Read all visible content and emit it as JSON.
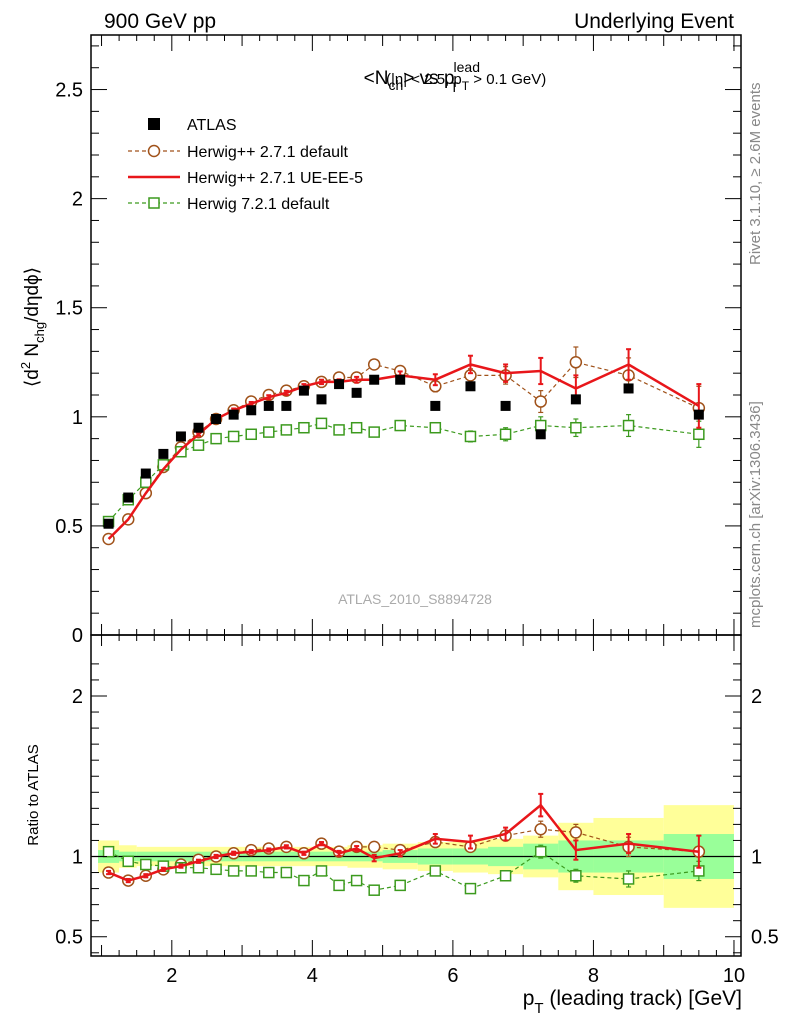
{
  "header": {
    "left": "900 GeV pp",
    "right": "Underlying Event"
  },
  "side": {
    "rivet": "Rivet 3.1.10,  ≥ 2.6M events",
    "mcplots": "mcplots.cern.ch [arXiv:1306.3436]"
  },
  "watermark": "ATLAS_2010_S8894728",
  "colors": {
    "data": "#000000",
    "herwig_default": "#a0521a",
    "herwig_ueee5": "#e8161a",
    "herwig7": "#3c9a1e",
    "band_inner": "#99ff99",
    "band_outer": "#ffff99"
  },
  "chart_data": [
    {
      "type": "scatter",
      "panel": "main",
      "title_parts": {
        "lhs": "<N",
        "lhs_sub": "ch",
        "mid": "> vs p",
        "mid_sup": "lead",
        "mid_sub": "T",
        "cut": "(|η| < 2.5, p",
        "cut_sub": "T",
        "cut_end": " > 0.1 GeV)"
      },
      "ylabel_parts": {
        "a": "⟨d",
        "a_sup": "2",
        "b": " N",
        "b_sub": "chg",
        "c": "/dηdϕ⟩"
      },
      "xlim": [
        0.85,
        10.1
      ],
      "ylim": [
        0,
        2.75
      ],
      "yticks": [
        {
          "v": 0,
          "l": "0"
        },
        {
          "v": 0.5,
          "l": "0.5"
        },
        {
          "v": 1,
          "l": "1"
        },
        {
          "v": 1.5,
          "l": "1.5"
        },
        {
          "v": 2,
          "l": "2"
        },
        {
          "v": 2.5,
          "l": "2.5"
        }
      ],
      "x": [
        1.1,
        1.38,
        1.63,
        1.88,
        2.13,
        2.38,
        2.63,
        2.88,
        3.13,
        3.38,
        3.63,
        3.88,
        4.13,
        4.38,
        4.63,
        4.88,
        5.25,
        5.75,
        6.25,
        6.75,
        7.25,
        7.75,
        8.5,
        9.5
      ],
      "legend": [
        "ATLAS",
        "Herwig++ 2.7.1 default",
        "Herwig++ 2.7.1 UE-EE-5",
        "Herwig 7.2.1 default"
      ],
      "series": [
        {
          "name": "ATLAS",
          "style": "data",
          "values": [
            0.51,
            0.63,
            0.74,
            0.83,
            0.91,
            0.95,
            0.99,
            1.01,
            1.03,
            1.05,
            1.05,
            1.12,
            1.08,
            1.15,
            1.11,
            1.17,
            1.17,
            1.05,
            1.14,
            1.05,
            0.92,
            1.08,
            1.13,
            1.01
          ]
        },
        {
          "name": "Herwig++ 2.7.1 default",
          "style": "herwig_default",
          "values": [
            0.44,
            0.53,
            0.65,
            0.77,
            0.86,
            0.93,
            0.99,
            1.03,
            1.07,
            1.1,
            1.12,
            1.14,
            1.16,
            1.18,
            1.18,
            1.24,
            1.21,
            1.14,
            1.19,
            1.19,
            1.07,
            1.25,
            1.19,
            1.04
          ],
          "err": [
            0.005,
            0.005,
            0.005,
            0.006,
            0.006,
            0.007,
            0.007,
            0.008,
            0.008,
            0.009,
            0.009,
            0.01,
            0.01,
            0.012,
            0.013,
            0.015,
            0.018,
            0.025,
            0.03,
            0.04,
            0.05,
            0.07,
            0.08,
            0.1
          ]
        },
        {
          "name": "Herwig++ 2.7.1 UE-EE-5",
          "style": "herwig_ueee5",
          "values": [
            0.44,
            0.53,
            0.65,
            0.76,
            0.85,
            0.92,
            0.99,
            1.03,
            1.06,
            1.09,
            1.11,
            1.14,
            1.16,
            1.16,
            1.17,
            1.17,
            1.19,
            1.17,
            1.24,
            1.2,
            1.21,
            1.13,
            1.24,
            1.05
          ],
          "err": [
            0.005,
            0.005,
            0.005,
            0.006,
            0.006,
            0.007,
            0.007,
            0.008,
            0.008,
            0.009,
            0.009,
            0.01,
            0.01,
            0.012,
            0.013,
            0.015,
            0.018,
            0.025,
            0.04,
            0.04,
            0.06,
            0.06,
            0.07,
            0.1
          ]
        },
        {
          "name": "Herwig 7.2.1 default",
          "style": "herwig7",
          "values": [
            0.52,
            0.62,
            0.7,
            0.78,
            0.84,
            0.87,
            0.9,
            0.91,
            0.92,
            0.93,
            0.94,
            0.95,
            0.97,
            0.94,
            0.95,
            0.93,
            0.96,
            0.95,
            0.91,
            0.92,
            0.96,
            0.95,
            0.96,
            0.92
          ],
          "err": [
            0.005,
            0.005,
            0.005,
            0.006,
            0.006,
            0.007,
            0.007,
            0.008,
            0.008,
            0.009,
            0.009,
            0.01,
            0.01,
            0.012,
            0.013,
            0.015,
            0.018,
            0.02,
            0.025,
            0.03,
            0.04,
            0.04,
            0.05,
            0.06
          ]
        }
      ]
    },
    {
      "type": "line",
      "panel": "ratio",
      "ylabel": "Ratio to ATLAS",
      "xlabel_parts": {
        "p": "p",
        "sub": "T",
        "rest": " (leading track) [GeV]"
      },
      "xlim": [
        0.85,
        10.1
      ],
      "xticks": [
        {
          "v": 2,
          "l": "2"
        },
        {
          "v": 4,
          "l": "4"
        },
        {
          "v": 6,
          "l": "6"
        },
        {
          "v": 8,
          "l": "8"
        },
        {
          "v": 10,
          "l": "10"
        }
      ],
      "ylim": [
        0.38,
        2.38
      ],
      "yticks": [
        {
          "v": 0.5,
          "l": "0.5"
        },
        {
          "v": 1,
          "l": "1"
        },
        {
          "v": 2,
          "l": "2"
        }
      ],
      "bands": [
        {
          "x0": 0.95,
          "x1": 1.25,
          "inner": 0.04,
          "outer": 0.1
        },
        {
          "x0": 1.25,
          "x1": 1.5,
          "inner": 0.03,
          "outer": 0.07
        },
        {
          "x0": 1.5,
          "x1": 3.0,
          "inner": 0.03,
          "outer": 0.06
        },
        {
          "x0": 3.0,
          "x1": 4.5,
          "inner": 0.03,
          "outer": 0.06
        },
        {
          "x0": 4.5,
          "x1": 5.0,
          "inner": 0.03,
          "outer": 0.07
        },
        {
          "x0": 5.0,
          "x1": 5.5,
          "inner": 0.04,
          "outer": 0.08
        },
        {
          "x0": 5.5,
          "x1": 6.0,
          "inner": 0.05,
          "outer": 0.09
        },
        {
          "x0": 6.0,
          "x1": 6.5,
          "inner": 0.05,
          "outer": 0.1
        },
        {
          "x0": 6.5,
          "x1": 7.0,
          "inner": 0.06,
          "outer": 0.11
        },
        {
          "x0": 7.0,
          "x1": 7.5,
          "inner": 0.08,
          "outer": 0.13
        },
        {
          "x0": 7.5,
          "x1": 8.0,
          "inner": 0.1,
          "outer": 0.21
        },
        {
          "x0": 8.0,
          "x1": 9.0,
          "inner": 0.1,
          "outer": 0.24
        },
        {
          "x0": 9.0,
          "x1": 10.0,
          "inner": 0.14,
          "outer": 0.32
        }
      ],
      "series": [
        {
          "name": "Herwig++ 2.7.1 default",
          "style": "herwig_default",
          "values": [
            0.9,
            0.85,
            0.88,
            0.92,
            0.95,
            0.98,
            1.0,
            1.02,
            1.04,
            1.05,
            1.06,
            1.02,
            1.08,
            1.03,
            1.06,
            1.06,
            1.04,
            1.09,
            1.06,
            1.13,
            1.17,
            1.15,
            1.06,
            1.03
          ],
          "err": [
            0.01,
            0.01,
            0.01,
            0.01,
            0.01,
            0.01,
            0.01,
            0.01,
            0.01,
            0.01,
            0.01,
            0.01,
            0.01,
            0.015,
            0.015,
            0.02,
            0.02,
            0.02,
            0.02,
            0.03,
            0.05,
            0.05,
            0.06,
            0.1
          ]
        },
        {
          "name": "Herwig++ 2.7.1 UE-EE-5",
          "style": "herwig_ueee5",
          "values": [
            0.9,
            0.85,
            0.88,
            0.92,
            0.94,
            0.97,
            1.0,
            1.02,
            1.03,
            1.04,
            1.06,
            1.02,
            1.08,
            1.02,
            1.05,
            0.99,
            1.02,
            1.11,
            1.09,
            1.14,
            1.32,
            1.04,
            1.08,
            1.03
          ],
          "err": [
            0.01,
            0.01,
            0.01,
            0.01,
            0.01,
            0.01,
            0.01,
            0.01,
            0.01,
            0.01,
            0.01,
            0.01,
            0.01,
            0.015,
            0.015,
            0.02,
            0.02,
            0.03,
            0.04,
            0.04,
            0.07,
            0.06,
            0.06,
            0.1
          ]
        },
        {
          "name": "Herwig 7.2.1 default",
          "style": "herwig7",
          "values": [
            1.03,
            0.97,
            0.95,
            0.94,
            0.93,
            0.93,
            0.92,
            0.91,
            0.91,
            0.9,
            0.9,
            0.85,
            0.91,
            0.82,
            0.85,
            0.79,
            0.82,
            0.91,
            0.8,
            0.88,
            1.03,
            0.88,
            0.86,
            0.91
          ],
          "err": [
            0.01,
            0.01,
            0.01,
            0.01,
            0.01,
            0.01,
            0.01,
            0.01,
            0.01,
            0.01,
            0.01,
            0.01,
            0.01,
            0.015,
            0.015,
            0.02,
            0.02,
            0.02,
            0.02,
            0.03,
            0.04,
            0.04,
            0.05,
            0.06
          ]
        }
      ]
    }
  ]
}
